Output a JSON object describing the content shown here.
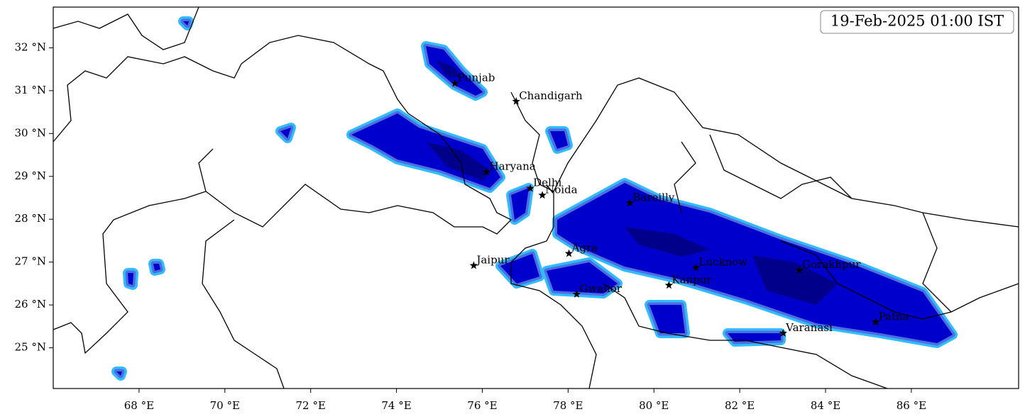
{
  "map": {
    "title": "19-Feb-2025 01:00 IST",
    "xlim": [
      66,
      88.5
    ],
    "ylim": [
      24.05,
      32.95
    ],
    "xticks": [
      {
        "value": 68,
        "label": "68 °E"
      },
      {
        "value": 70,
        "label": "70 °E"
      },
      {
        "value": 72,
        "label": "72 °E"
      },
      {
        "value": 74,
        "label": "74 °E"
      },
      {
        "value": 76,
        "label": "76 °E"
      },
      {
        "value": 78,
        "label": "78 °E"
      },
      {
        "value": 80,
        "label": "80 °E"
      },
      {
        "value": 82,
        "label": "82 °E"
      },
      {
        "value": 84,
        "label": "84 °E"
      },
      {
        "value": 86,
        "label": "86 °E"
      }
    ],
    "yticks": [
      {
        "value": 25,
        "label": "25 °N"
      },
      {
        "value": 26,
        "label": "26 °N"
      },
      {
        "value": 27,
        "label": "27 °N"
      },
      {
        "value": 28,
        "label": "28 °N"
      },
      {
        "value": 29,
        "label": "29 °N"
      },
      {
        "value": 30,
        "label": "30 °N"
      },
      {
        "value": 31,
        "label": "31 °N"
      },
      {
        "value": 32,
        "label": "32 °N"
      }
    ],
    "cities": [
      {
        "name": "Punjab",
        "lon": 75.36,
        "lat": 31.17
      },
      {
        "name": "Chandigarh",
        "lon": 76.79,
        "lat": 30.75
      },
      {
        "name": "Haryana",
        "lon": 76.1,
        "lat": 29.1
      },
      {
        "name": "Delhi",
        "lon": 77.12,
        "lat": 28.72
      },
      {
        "name": "Noida",
        "lon": 77.4,
        "lat": 28.56
      },
      {
        "name": "Bareilly",
        "lon": 79.44,
        "lat": 28.38
      },
      {
        "name": "Jaipur",
        "lon": 75.8,
        "lat": 26.92
      },
      {
        "name": "Agra",
        "lon": 78.02,
        "lat": 27.2
      },
      {
        "name": "Gwalior",
        "lon": 78.2,
        "lat": 26.25
      },
      {
        "name": "Lucknow",
        "lon": 80.98,
        "lat": 26.87
      },
      {
        "name": "Kanpur",
        "lon": 80.35,
        "lat": 26.46
      },
      {
        "name": "Gorakhpur",
        "lon": 83.39,
        "lat": 26.81
      },
      {
        "name": "Varanasi",
        "lon": 83.01,
        "lat": 25.34
      },
      {
        "name": "Patna",
        "lon": 85.17,
        "lat": 25.6
      }
    ]
  }
}
